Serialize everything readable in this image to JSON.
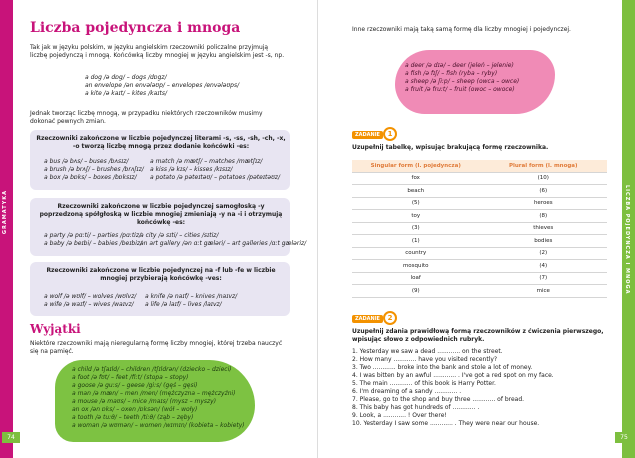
{
  "left": {
    "side": "GRAMATYKA",
    "title": "Liczba pojedyncza i mnoga",
    "intro": "Tak jak w języku polskim, w języku angielskim rzeczowniki policzalne przyjmują liczbę pojedynczą i mnogą. Końcówką liczby mnogiej w języku angielskim jest -s, np.",
    "examples": [
      "a dog /ə dɒg/ – dogs /dɒgz/",
      "an envelope /ən envələʊp/ – envelopes /envələʊps/",
      "a kite /ə kaɪt/ – kites /kaɪts/"
    ],
    "note": "Jednak tworząc liczbę mnogą, w przypadku niektórych rzeczowników musimy dokonać pewnych zmian.",
    "rules": [
      {
        "text": "Rzeczowniki zakończone w liczbie pojedynczej literami -s, -ss, -sh, -ch, -x, -o tworzą liczbę mnogą przez dodanie końcówki -es:",
        "col1": [
          "a bus /ə bʌs/ – buses /bʌsɪz/",
          "a brush /ə brʌʃ/ – brushes /brʌʃɪz/",
          "a box /ə bɒks/ – boxes /bɒksɪz/"
        ],
        "col2": [
          "a match /ə mætʃ/ – matches /mætʃɪz/",
          "a kiss /ə kɪs/ – kisses /kɪsɪz/",
          "a potato /ə pəteɪtəʊ/ – potatoes /pəteɪtəʊz/"
        ]
      },
      {
        "text": "Rzeczowniki zakończone w liczbie pojedynczej samogłoską -y poprzedzoną spółgłoską w liczbie mnogiej zmieniają -y na -i i otrzymują końcówkę -es:",
        "col1": [
          "a party /ə pɑːti/ – parties /pɑːtiz/",
          "a baby /ə beɪbi/ – babies /beɪbiz/"
        ],
        "col2": [
          "a city /ə sɪti/ – cities /sɪtiz/",
          "an art gallery /ən ɑːt gæləri/ – art galleries /ɑːt gæləriz/"
        ]
      },
      {
        "text": "Rzeczowniki zakończone w liczbie pojedynczej na -f lub -fe w liczbie mnogiej przybierają końcówkę -ves:",
        "col1": [
          "a wolf /ə wʊlf/ – wolves /wʊlvz/",
          "a wife /ə waɪf/ – wives /waɪvz/"
        ],
        "col2": [
          "a knife /ə naɪf/ – knives /naɪvz/",
          "a life /ə laɪf/ – lives /laɪvz/"
        ]
      }
    ],
    "exceptions_title": "Wyjątki",
    "exceptions_text": "Niektóre rzeczowniki mają nieregularną formę liczby mnogiej, której trzeba nauczyć się na pamięć.",
    "exceptions": [
      "a child /ə tʃaɪld/ – children /tʃɪldrən/ (dziecko – dzieci)",
      "a foot /ə fʊt/ – feet /fiːt/ (stopa – stopy)",
      "a goose /ə guːs/ – geese /giːs/ (gęś – gęsi)",
      "a man /ə mæn/ – men /men/ (mężczyzna – mężczyźni)",
      "a mouse /ə maʊs/ – mice /maɪs/ (mysz – myszy)",
      "an ox /ən ɒks/ – oxen /ɒksən/ (wół – woły)",
      "a tooth /ə tuːθ/ – teeth /tiːθ/ (ząb – zęby)",
      "a woman /ə wʊmən/ – women /wɪmɪn/ (kobieta – kobiety)"
    ],
    "page": "74"
  },
  "right": {
    "side": "LICZBA POJEDYNCZA I MNOGA",
    "intro": "Inne rzeczowniki mają taką samą formę dla liczby mnogiej i pojedynczej.",
    "same_form": [
      "a deer /ə dɪə/ – deer (jeleń – jelenie)",
      "a fish /ə fɪʃ/ – fish (ryba – ryby)",
      "a sheep /ə ʃiːp/ – sheep (owca – owce)",
      "a fruit /ə fruːt/ – fruit (owoc – owoce)"
    ],
    "task1": {
      "label": "ZADANIE",
      "number": "1",
      "instruction": "Uzupełnij tabelkę, wpisując brakującą formę rzeczownika.",
      "table": {
        "headers": [
          "Singular form (l. pojedyncza)",
          "Plural form (l. mnoga)"
        ],
        "rows": [
          [
            "fox",
            "(10)"
          ],
          [
            "beach",
            "(6)"
          ],
          [
            "(5)",
            "heroes"
          ],
          [
            "toy",
            "(8)"
          ],
          [
            "(3)",
            "thieves"
          ],
          [
            "(1)",
            "bodies"
          ],
          [
            "country",
            "(2)"
          ],
          [
            "mosquito",
            "(4)"
          ],
          [
            "loaf",
            "(7)"
          ],
          [
            "(9)",
            "mice"
          ]
        ]
      }
    },
    "task2": {
      "label": "ZADANIE",
      "number": "2",
      "instruction": "Uzupełnij zdania prawidłową formą rzeczowników z ćwiczenia pierwszego, wpisując słowo z odpowiednich rubryk.",
      "sentences": [
        "1. Yesterday we saw a dead ............ on the street.",
        "2. How many ............ have you visited recently?",
        "3. Two ............ broke into the bank and stole a lot of money.",
        "4. I was bitten by an awful ............ . I've got a red spot on my face.",
        "5. The main ............ of this book is Harry Potter.",
        "6. I'm dreaming of a sandy ............ .",
        "7. Please, go to the shop and buy three ............ of bread.",
        "8. This baby has got hundreds of ............ .",
        "9. Look, a ............ ! Over there!",
        "10. Yesterday I saw some ............ . They were near our house."
      ]
    },
    "page": "75"
  }
}
